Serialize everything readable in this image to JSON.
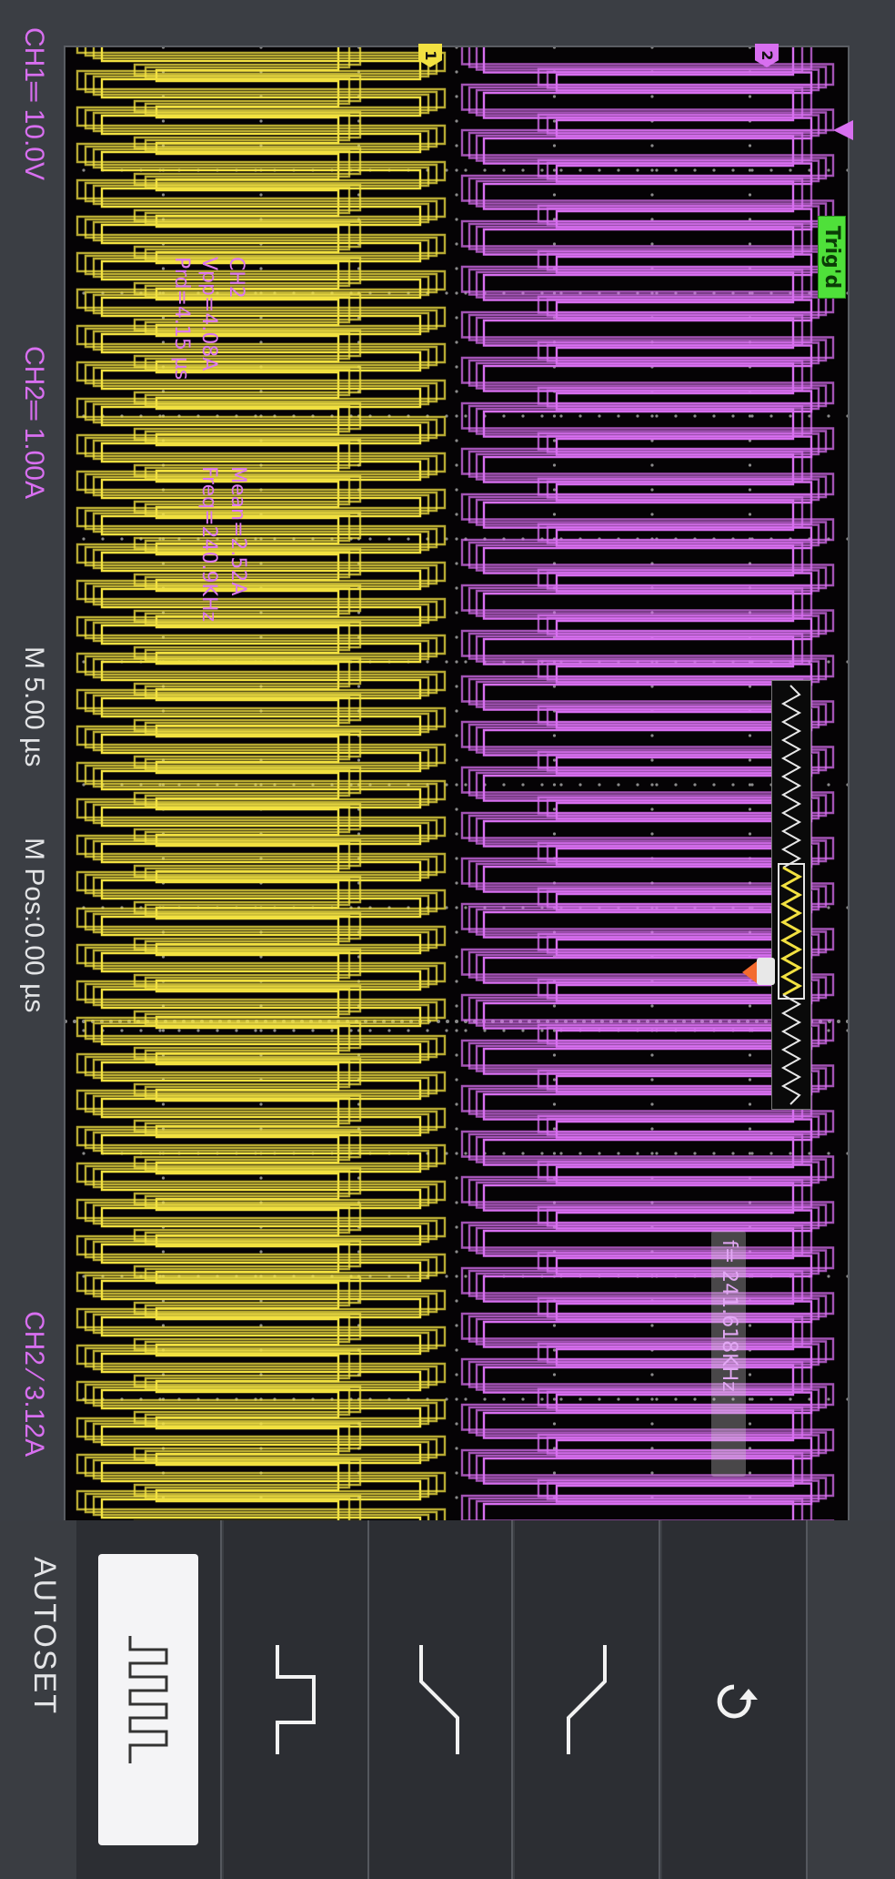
{
  "colors": {
    "ch1": "#f2e141",
    "ch2": "#d86ff0",
    "trigger": "#f36b2f",
    "trig_badge": "#4fe03a"
  },
  "display": {
    "trig_status": "Trig'd",
    "ch1_marker": "1",
    "ch2_marker": "2"
  },
  "measurements": {
    "channel": "CH2",
    "vpp": "Vpp=4.08A",
    "prd": "Prd=4.15 µs",
    "mean": "Mean=2.52A",
    "freq": "Freq=240.9KHz",
    "freq_counter": "f= 241.618KHz"
  },
  "status_bar": {
    "ch1": "CH1═ 10.0V",
    "ch2": "CH2═ 1.00A",
    "timebase": "M 5.00 µs",
    "mpos": "M Pos:0.00 µs",
    "trigger": "CH2 ∕ 3.12A"
  },
  "menu": {
    "title": "AUTOSET",
    "icons": [
      "multi-cycle-icon",
      "single-cycle-icon",
      "rising-edge-icon",
      "falling-edge-icon",
      "undo-icon"
    ]
  }
}
